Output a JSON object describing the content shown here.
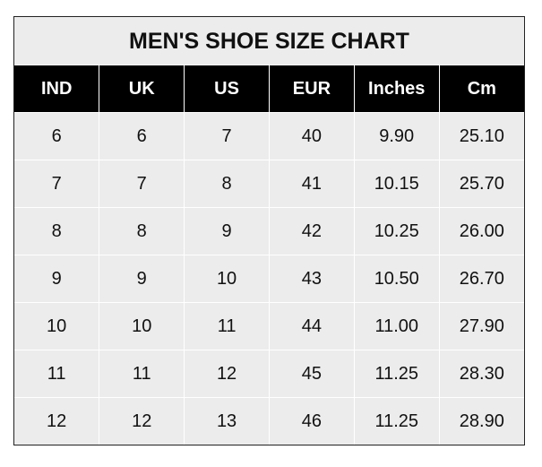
{
  "title": "MEN'S SHOE SIZE CHART",
  "columns": [
    "IND",
    "UK",
    "US",
    "EUR",
    "Inches",
    "Cm"
  ],
  "rows": [
    [
      "6",
      "6",
      "7",
      "40",
      "9.90",
      "25.10"
    ],
    [
      "7",
      "7",
      "8",
      "41",
      "10.15",
      "25.70"
    ],
    [
      "8",
      "8",
      "9",
      "42",
      "10.25",
      "26.00"
    ],
    [
      "9",
      "9",
      "10",
      "43",
      "10.50",
      "26.70"
    ],
    [
      "10",
      "10",
      "11",
      "44",
      "11.00",
      "27.90"
    ],
    [
      "11",
      "11",
      "12",
      "45",
      "11.25",
      "28.30"
    ],
    [
      "12",
      "12",
      "13",
      "46",
      "11.25",
      "28.90"
    ]
  ],
  "colors": {
    "header_bg": "#000000",
    "cell_bg": "#ececec",
    "grid": "#ffffff"
  }
}
